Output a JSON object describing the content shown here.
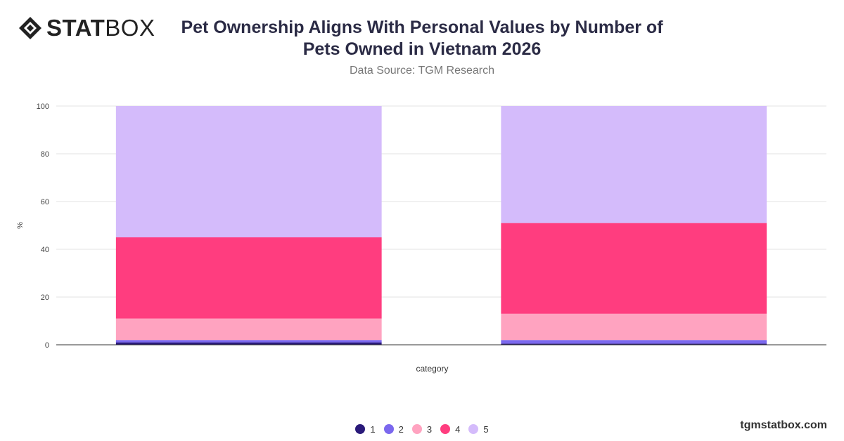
{
  "brand": {
    "logo_bold": "STAT",
    "logo_light": "BOX",
    "website": "tgmstatbox.com"
  },
  "chart_data": {
    "type": "bar",
    "stacked": true,
    "title": "Pet Ownership Aligns With Personal Values by Number of Pets Owned in Vietnam 2026",
    "subtitle": "Data Source: TGM Research",
    "xlabel": "category",
    "ylabel": "%",
    "ylim": [
      0,
      100
    ],
    "yticks": [
      0,
      20,
      40,
      60,
      80,
      100
    ],
    "grid": true,
    "legend_position": "bottom",
    "categories": [
      "",
      ""
    ],
    "series": [
      {
        "name": "1",
        "color": "#2a1a7a",
        "values": [
          1,
          0.5
        ]
      },
      {
        "name": "2",
        "color": "#7b68ee",
        "values": [
          1,
          1.5
        ]
      },
      {
        "name": "3",
        "color": "#ffa3c0",
        "values": [
          9,
          11
        ]
      },
      {
        "name": "4",
        "color": "#ff3d7f",
        "values": [
          34,
          38
        ]
      },
      {
        "name": "5",
        "color": "#d4bbfb",
        "values": [
          55,
          49
        ]
      }
    ]
  }
}
